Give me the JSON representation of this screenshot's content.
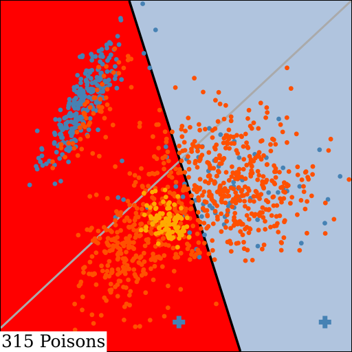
{
  "chart_data": {
    "type": "scatter",
    "title": "",
    "xlabel": "",
    "ylabel": "",
    "xlim": [
      -3,
      3
    ],
    "ylim": [
      -3,
      3
    ],
    "grid": false,
    "annotation": "315 Poisons",
    "regions": [
      {
        "name": "left-region",
        "color": "#ff0000"
      },
      {
        "name": "right-region",
        "color": "#b0c4de"
      }
    ],
    "decision_boundaries": [
      {
        "name": "poisoned-boundary",
        "color": "#000000",
        "points": [
          [
            -0.8,
            3.0
          ],
          [
            1.1,
            -3.0
          ]
        ]
      },
      {
        "name": "clean-boundary",
        "color": "#aaaaaa",
        "points": [
          [
            -3.0,
            -2.6
          ],
          [
            3.0,
            3.0
          ]
        ]
      }
    ],
    "series": [
      {
        "key": "blue-points",
        "color": "#4682b4",
        "clusters": [
          {
            "n": 260,
            "mx": -1.6,
            "my": 1.25,
            "sx": 0.32,
            "sy": 0.55,
            "rho": 0.82
          },
          {
            "n": 70,
            "mx": 0.9,
            "my": -0.2,
            "sx": 0.75,
            "sy": 0.6,
            "rho": 0.0
          }
        ],
        "extra_points": [
          [
            -0.35,
            2.5
          ],
          [
            -0.55,
            2.1
          ],
          [
            -0.45,
            1.85
          ],
          [
            1.4,
            -1.2
          ],
          [
            2.6,
            -0.4
          ]
        ]
      },
      {
        "key": "orange-points",
        "color": "#ff5000",
        "clusters": [
          {
            "n": 520,
            "mx": 0.85,
            "my": -0.15,
            "sx": 0.8,
            "sy": 0.62,
            "rho": 0.1
          },
          {
            "n": 230,
            "mx": -0.85,
            "my": -1.35,
            "sx": 0.4,
            "sy": 0.48,
            "rho": 0.2
          },
          {
            "n": 55,
            "mx": -1.4,
            "my": 1.1,
            "sx": 0.32,
            "sy": 0.5,
            "rho": 0.8
          }
        ],
        "extra_points": [
          [
            1.9,
            1.85
          ],
          [
            1.45,
            1.25
          ],
          [
            1.5,
            0.35
          ],
          [
            -0.2,
            -2.4
          ]
        ]
      },
      {
        "key": "gold-points",
        "color": "#ffaa00",
        "clusters": [
          {
            "n": 100,
            "mx": -0.15,
            "my": -0.75,
            "sx": 0.18,
            "sy": 0.2,
            "rho": -0.3
          }
        ],
        "extra_points": []
      }
    ],
    "markers": [
      {
        "key": "centroid-marker",
        "symbol": "plus",
        "color": "#4682b4",
        "x": 0.05,
        "y": -2.5
      },
      {
        "key": "centroid-marker",
        "symbol": "plus",
        "color": "#4682b4",
        "x": 2.55,
        "y": -2.5
      }
    ]
  }
}
